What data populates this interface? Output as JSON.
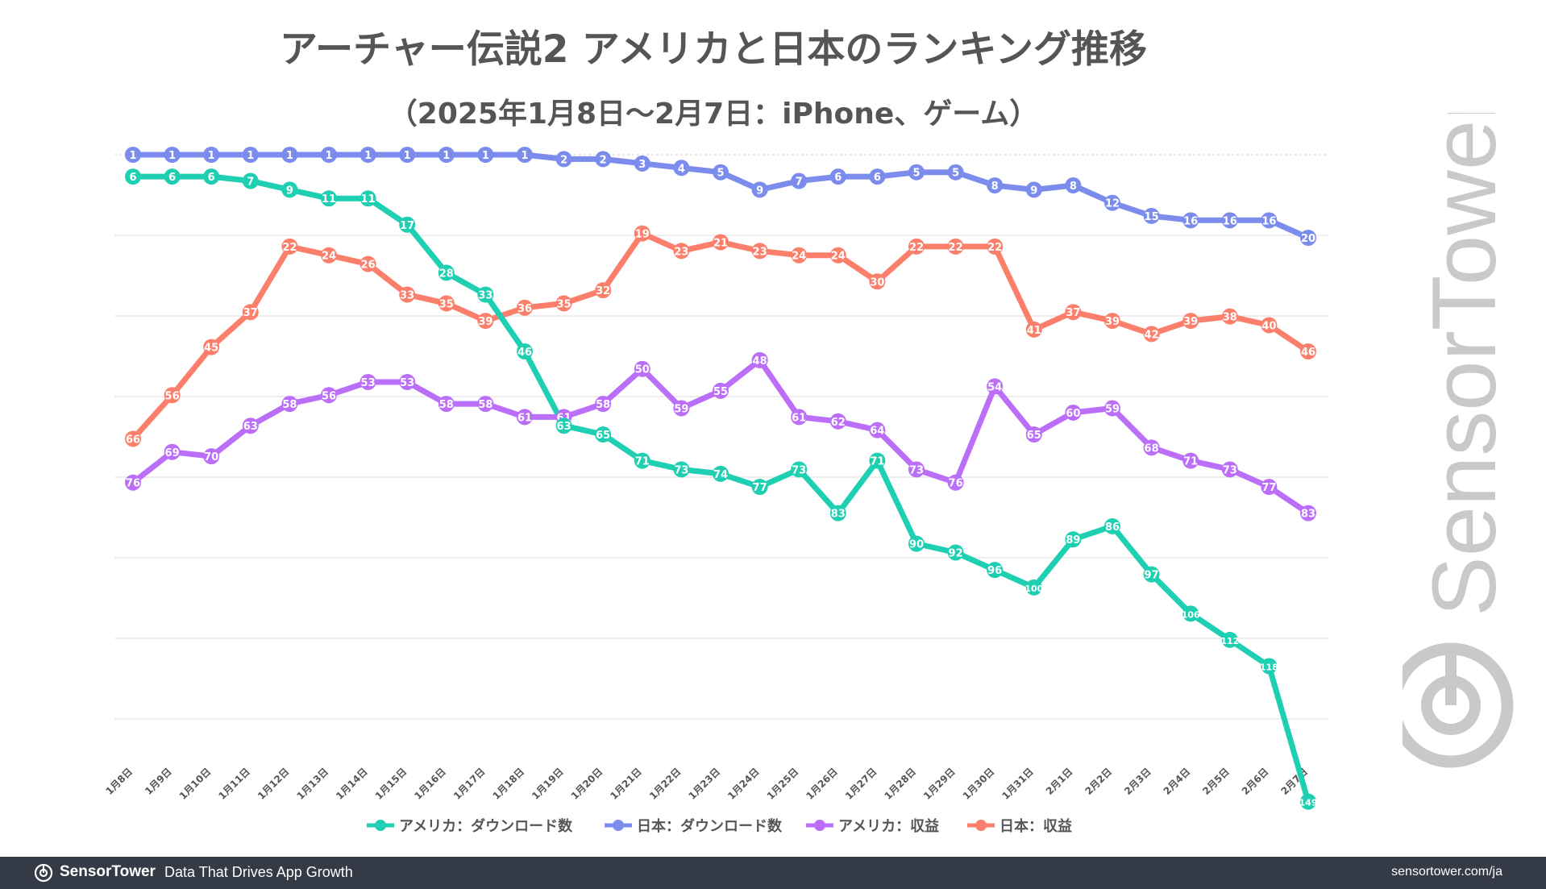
{
  "page": {
    "title": "アーチャー伝説2 アメリカと日本のランキング推移",
    "subtitle": "（2025年1月8日〜2月7日：iPhone、ゲーム）"
  },
  "watermark": {
    "brand": "SensorTower"
  },
  "footer": {
    "brand": "SensorTower",
    "tagline": "Data That Drives App Growth",
    "url": "sensortower.com/ja",
    "logo_icon": "sensortower-logo-icon"
  },
  "chart_data": {
    "type": "line",
    "title": "アーチャー伝説2 アメリカと日本のランキング推移",
    "subtitle": "（2025年1月8日〜2月7日：iPhone、ゲーム）",
    "xlabel": "",
    "ylabel": "",
    "y_inverted": true,
    "ylim": [
      1,
      150
    ],
    "grid": true,
    "legend_position": "bottom-center",
    "categories": [
      "1月8日",
      "1月9日",
      "1月10日",
      "1月11日",
      "1月12日",
      "1月13日",
      "1月14日",
      "1月15日",
      "1月16日",
      "1月17日",
      "1月18日",
      "1月19日",
      "1月20日",
      "1月21日",
      "1月22日",
      "1月23日",
      "1月24日",
      "1月25日",
      "1月26日",
      "1月27日",
      "1月28日",
      "1月29日",
      "1月30日",
      "1月31日",
      "2月1日",
      "2月2日",
      "2月3日",
      "2月4日",
      "2月5日",
      "2月6日",
      "2月7日"
    ],
    "series": [
      {
        "name": "アメリカ：ダウンロード数",
        "color": "#1ecfb2",
        "values": [
          6,
          6,
          6,
          7,
          9,
          11,
          11,
          17,
          28,
          33,
          46,
          63,
          65,
          71,
          73,
          74,
          77,
          73,
          83,
          71,
          90,
          92,
          96,
          100,
          89,
          86,
          97,
          106,
          112,
          118,
          149
        ]
      },
      {
        "name": "日本：ダウンロード数",
        "color": "#7b8cec",
        "values": [
          1,
          1,
          1,
          1,
          1,
          1,
          1,
          1,
          1,
          1,
          1,
          2,
          2,
          3,
          4,
          5,
          9,
          7,
          6,
          6,
          5,
          5,
          8,
          9,
          8,
          12,
          15,
          16,
          16,
          16,
          20
        ]
      },
      {
        "name": "アメリカ：収益",
        "color": "#bb6ef7",
        "values": [
          76,
          69,
          70,
          63,
          58,
          56,
          53,
          53,
          58,
          58,
          61,
          61,
          58,
          50,
          59,
          55,
          48,
          61,
          62,
          64,
          73,
          76,
          54,
          65,
          60,
          59,
          68,
          71,
          73,
          77,
          83
        ]
      },
      {
        "name": "日本：収益",
        "color": "#fb7f6b",
        "values": [
          66,
          56,
          45,
          37,
          22,
          24,
          26,
          33,
          35,
          39,
          36,
          35,
          32,
          19,
          23,
          21,
          23,
          24,
          24,
          30,
          22,
          22,
          22,
          41,
          37,
          39,
          42,
          39,
          38,
          40,
          46
        ]
      }
    ]
  }
}
